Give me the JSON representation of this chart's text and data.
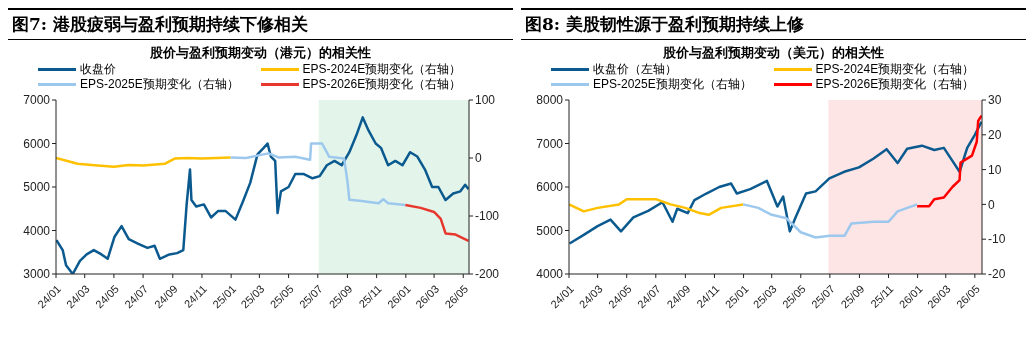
{
  "chart_data": [
    {
      "type": "line",
      "title": "图7:  港股疲弱与盈利预期持续下修相关",
      "subtitle": "股价与盈利预期变动（港元）的相关性",
      "legend": "top",
      "xlim": [
        "2024-01-01",
        "2026-05-13"
      ],
      "xticks": [
        {
          "value": "2024-01",
          "label": "24/01"
        },
        {
          "value": "2024-03",
          "label": "24/03"
        },
        {
          "value": "2024-05",
          "label": "24/05"
        },
        {
          "value": "2024-07",
          "label": "24/07"
        },
        {
          "value": "2024-09",
          "label": "24/09"
        },
        {
          "value": "2024-11",
          "label": "24/11"
        },
        {
          "value": "2025-01",
          "label": "25/01"
        },
        {
          "value": "2025-03",
          "label": "25/03"
        },
        {
          "value": "2025-05",
          "label": "25/05"
        },
        {
          "value": "2025-07",
          "label": "25/07"
        },
        {
          "value": "2025-09",
          "label": "25/09"
        },
        {
          "value": "2025-11",
          "label": "25/11"
        },
        {
          "value": "2026-01",
          "label": "26/01"
        },
        {
          "value": "2026-03",
          "label": "26/03"
        },
        {
          "value": "2026-05",
          "label": "26/05"
        }
      ],
      "ylim": [
        3000,
        7000
      ],
      "yticks": [
        3000,
        4000,
        5000,
        6000,
        7000
      ],
      "y2lim": [
        -200,
        100
      ],
      "y2ticks": [
        -200,
        -100,
        0,
        100
      ],
      "bands": [
        {
          "axis": "x",
          "from": "2025-07-03",
          "to": "2026-05-13",
          "color": "#e3f5ea"
        }
      ],
      "series": [
        {
          "name": "收盘价",
          "color": "#0b5a8f",
          "x": [
            "2024-01-02",
            "2024-01-15",
            "2024-01-22",
            "2024-02-05",
            "2024-02-20",
            "2024-03-05",
            "2024-03-20",
            "2024-04-05",
            "2024-04-18",
            "2024-05-02",
            "2024-05-17",
            "2024-06-01",
            "2024-06-20",
            "2024-07-10",
            "2024-07-25",
            "2024-08-05",
            "2024-08-25",
            "2024-09-10",
            "2024-09-23",
            "2024-09-30",
            "2024-10-07",
            "2024-10-10",
            "2024-10-20",
            "2024-11-05",
            "2024-11-20",
            "2024-12-05",
            "2024-12-20",
            "2025-01-10",
            "2025-01-25",
            "2025-02-10",
            "2025-02-25",
            "2025-03-10",
            "2025-03-18",
            "2025-03-25",
            "2025-04-03",
            "2025-04-08",
            "2025-04-15",
            "2025-05-01",
            "2025-05-15",
            "2025-06-01",
            "2025-06-20",
            "2025-07-05",
            "2025-07-20",
            "2025-08-05",
            "2025-08-20",
            "2025-09-05",
            "2025-09-20",
            "2025-10-03",
            "2025-10-15",
            "2025-10-30",
            "2025-11-10",
            "2025-11-25",
            "2025-12-10",
            "2025-12-25",
            "2026-01-10",
            "2026-01-25",
            "2026-02-10",
            "2026-02-25",
            "2026-03-10",
            "2026-03-25",
            "2026-04-10",
            "2026-04-25",
            "2026-05-05",
            "2026-05-12"
          ],
          "values": [
            3780,
            3550,
            3200,
            3000,
            3300,
            3450,
            3550,
            3450,
            3350,
            3850,
            4100,
            3800,
            3700,
            3600,
            3650,
            3350,
            3450,
            3480,
            3550,
            4600,
            5400,
            4700,
            4550,
            4600,
            4300,
            4450,
            4450,
            4250,
            4650,
            5100,
            5750,
            5900,
            6000,
            5700,
            5600,
            4400,
            4900,
            5000,
            5300,
            5300,
            5200,
            5250,
            5500,
            5600,
            5500,
            5800,
            6200,
            6600,
            6300,
            6000,
            5900,
            5500,
            5600,
            5500,
            5800,
            5700,
            5400,
            5000,
            5000,
            4700,
            4850,
            4900,
            5050,
            4950
          ]
        },
        {
          "name": "EPS-2024E预期变化（右轴）",
          "color": "#ffc000",
          "axis": "y2",
          "x": [
            "2024-01-01",
            "2024-02-15",
            "2024-03-15",
            "2024-05-01",
            "2024-06-01",
            "2024-07-01",
            "2024-08-15",
            "2024-09-05",
            "2024-10-01",
            "2024-11-01",
            "2024-12-01",
            "2024-12-31"
          ],
          "values": [
            0,
            -10,
            -12,
            -15,
            -12,
            -13,
            -10,
            -1,
            0,
            -1,
            0,
            1
          ]
        },
        {
          "name": "EPS-2025E预期变化（右轴）",
          "color": "#9dc8ee",
          "axis": "y2",
          "x": [
            "2024-12-31",
            "2025-02-01",
            "2025-03-20",
            "2025-04-10",
            "2025-05-15",
            "2025-06-15",
            "2025-06-17",
            "2025-07-10",
            "2025-07-25",
            "2025-08-25",
            "2025-09-01",
            "2025-09-05",
            "2025-10-01",
            "2025-11-05",
            "2025-11-15",
            "2025-11-25",
            "2025-12-31"
          ],
          "values": [
            1,
            0,
            8,
            1,
            2,
            -3,
            25,
            25,
            2,
            -1,
            -40,
            -72,
            -74,
            -78,
            -71,
            -78,
            -81
          ]
        },
        {
          "name": "EPS-2026E预期变化（右轴）",
          "color": "#e8382e",
          "axis": "y2",
          "x": [
            "2025-12-31",
            "2026-02-01",
            "2026-03-01",
            "2026-03-15",
            "2026-03-25",
            "2026-04-15",
            "2026-05-12"
          ],
          "values": [
            -81,
            -86,
            -93,
            -105,
            -130,
            -132,
            -143
          ]
        }
      ]
    },
    {
      "type": "line",
      "title": "图8:  美股韧性源于盈利预期持续上修",
      "subtitle": "股价与盈利预期变动（美元）的相关性",
      "legend": "top",
      "xlim": [
        "2024-01-01",
        "2026-05-16"
      ],
      "xticks": [
        {
          "value": "2024-01",
          "label": "24/01"
        },
        {
          "value": "2024-03",
          "label": "24/03"
        },
        {
          "value": "2024-05",
          "label": "24/05"
        },
        {
          "value": "2024-07",
          "label": "24/07"
        },
        {
          "value": "2024-09",
          "label": "24/09"
        },
        {
          "value": "2024-11",
          "label": "24/11"
        },
        {
          "value": "2025-01",
          "label": "25/01"
        },
        {
          "value": "2025-03",
          "label": "25/03"
        },
        {
          "value": "2025-05",
          "label": "25/05"
        },
        {
          "value": "2025-07",
          "label": "25/07"
        },
        {
          "value": "2025-09",
          "label": "25/09"
        },
        {
          "value": "2025-11",
          "label": "25/11"
        },
        {
          "value": "2026-01",
          "label": "26/01"
        },
        {
          "value": "2026-03",
          "label": "26/03"
        },
        {
          "value": "2026-05",
          "label": "26/05"
        }
      ],
      "ylim": [
        4000,
        8000
      ],
      "yticks": [
        4000,
        5000,
        6000,
        7000,
        8000
      ],
      "y2lim": [
        -20,
        30
      ],
      "y2ticks": [
        -20,
        -10,
        0,
        10,
        20,
        30
      ],
      "bands": [
        {
          "axis": "x",
          "from": "2025-06-28",
          "to": "2026-05-16",
          "color": "#fde5e5"
        }
      ],
      "series": [
        {
          "name": "收盘价（左轴）",
          "color": "#0b5a8f",
          "x": [
            "2024-01-02",
            "2024-02-01",
            "2024-03-01",
            "2024-03-28",
            "2024-04-19",
            "2024-05-15",
            "2024-06-15",
            "2024-07-15",
            "2024-08-05",
            "2024-08-15",
            "2024-09-06",
            "2024-09-20",
            "2024-10-15",
            "2024-11-11",
            "2024-12-06",
            "2024-12-18",
            "2025-01-15",
            "2025-02-19",
            "2025-03-13",
            "2025-03-25",
            "2025-04-08",
            "2025-04-20",
            "2025-05-12",
            "2025-06-01",
            "2025-06-30",
            "2025-07-31",
            "2025-08-31",
            "2025-09-30",
            "2025-10-28",
            "2025-11-20",
            "2025-12-10",
            "2026-01-10",
            "2026-02-05",
            "2026-02-25",
            "2026-03-15",
            "2026-03-30",
            "2026-04-15",
            "2026-05-01",
            "2026-05-15"
          ],
          "values": [
            4700,
            4900,
            5100,
            5250,
            4980,
            5300,
            5450,
            5650,
            5200,
            5500,
            5400,
            5700,
            5850,
            6000,
            6080,
            5850,
            5950,
            6140,
            5550,
            5780,
            4980,
            5300,
            5850,
            5900,
            6200,
            6350,
            6450,
            6650,
            6870,
            6550,
            6880,
            6950,
            6850,
            6900,
            6600,
            6350,
            6900,
            7200,
            7500
          ]
        },
        {
          "name": "EPS-2024E预期变化（右轴）",
          "color": "#ffc000",
          "axis": "y2",
          "x": [
            "2024-01-01",
            "2024-02-01",
            "2024-03-01",
            "2024-04-15",
            "2024-05-01",
            "2024-07-01",
            "2024-08-01",
            "2024-09-01",
            "2024-10-01",
            "2024-10-20",
            "2024-11-15",
            "2024-12-31"
          ],
          "values": [
            0,
            -2,
            -1,
            0,
            1.5,
            1.5,
            0,
            -1,
            -2.5,
            -3,
            -1,
            0
          ]
        },
        {
          "name": "EPS-2025E预期变化（右轴）",
          "color": "#9dc8ee",
          "axis": "y2",
          "x": [
            "2024-12-31",
            "2025-02-01",
            "2025-03-01",
            "2025-04-01",
            "2025-05-01",
            "2025-06-01",
            "2025-07-01",
            "2025-08-01",
            "2025-08-15",
            "2025-10-01",
            "2025-11-01",
            "2025-11-20",
            "2025-12-31"
          ],
          "values": [
            0,
            -1,
            -3,
            -4,
            -8,
            -9.5,
            -9,
            -9,
            -5.5,
            -5,
            -5,
            -2,
            0
          ]
        },
        {
          "name": "EPS-2026E预期变化（右轴）",
          "color": "#ff0000",
          "axis": "y2",
          "x": [
            "2025-12-31",
            "2026-01-25",
            "2026-02-05",
            "2026-02-25",
            "2026-03-15",
            "2026-03-30",
            "2026-04-01",
            "2026-04-25",
            "2026-05-05",
            "2026-05-08",
            "2026-05-15"
          ],
          "values": [
            -0.5,
            -0.5,
            1.5,
            2,
            5,
            7,
            12,
            14,
            18,
            24,
            25.5
          ]
        }
      ]
    }
  ]
}
